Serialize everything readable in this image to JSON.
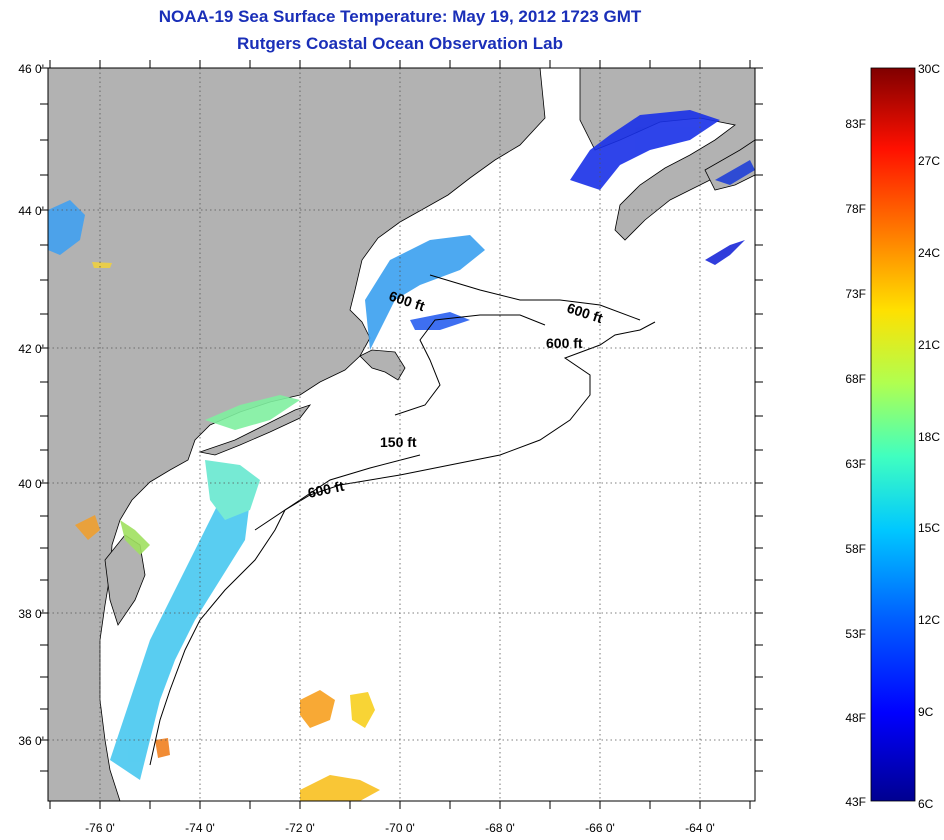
{
  "title": "NOAA-19 Sea Surface Temperature:  May 19, 2012 1723 GMT",
  "subtitle": "Rutgers Coastal Ocean Observation Lab",
  "map": {
    "lat_labels": [
      "46 0'",
      "44 0'",
      "42 0'",
      "40 0'",
      "38 0'",
      "36 0'"
    ],
    "lon_labels": [
      "-76 0'",
      "-74 0'",
      "-72 0'",
      "-70 0'",
      "-68 0'",
      "-66 0'",
      "-64 0'"
    ],
    "contour_labels": [
      "600 ft",
      "600 ft",
      "600 ft",
      "150 ft",
      "600 ft"
    ],
    "colors": {
      "land": "#b2b2b2",
      "cloud": "#ffffff",
      "grid": "#555555"
    }
  },
  "colorbar": {
    "celsius": [
      "30C",
      "27C",
      "24C",
      "21C",
      "18C",
      "15C",
      "12C",
      "9C",
      "6C"
    ],
    "fahrenheit": [
      "83F",
      "78F",
      "73F",
      "68F",
      "63F",
      "58F",
      "53F",
      "48F",
      "43F"
    ],
    "colors": [
      "#000090",
      "#0000ff",
      "#0060ff",
      "#00c8ff",
      "#40ffc0",
      "#b0ff50",
      "#ffe000",
      "#ff8000",
      "#ff1000",
      "#800000"
    ]
  }
}
